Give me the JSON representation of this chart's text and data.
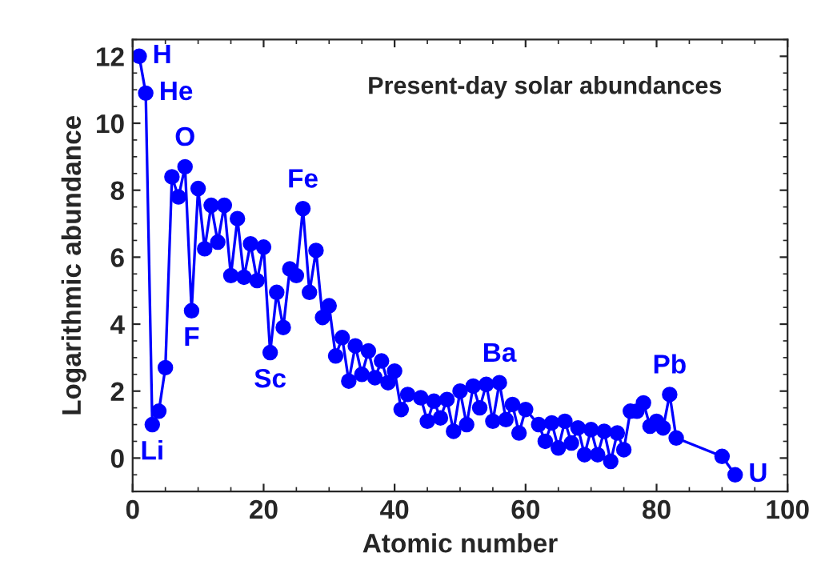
{
  "chart_data": {
    "type": "line",
    "title": "Present-day solar abundances",
    "xlabel": "Atomic number",
    "ylabel": "Logarithmic abundance",
    "x": [
      1,
      2,
      3,
      4,
      5,
      6,
      7,
      8,
      9,
      10,
      11,
      12,
      13,
      14,
      15,
      16,
      17,
      18,
      19,
      20,
      21,
      22,
      23,
      24,
      25,
      26,
      27,
      28,
      29,
      30,
      31,
      32,
      33,
      34,
      35,
      36,
      37,
      38,
      39,
      40,
      41,
      42,
      44,
      45,
      46,
      47,
      48,
      49,
      50,
      51,
      52,
      53,
      54,
      55,
      56,
      57,
      58,
      59,
      60,
      62,
      63,
      64,
      65,
      66,
      67,
      68,
      69,
      70,
      71,
      72,
      73,
      74,
      75,
      76,
      77,
      78,
      79,
      80,
      81,
      82,
      83,
      90,
      92
    ],
    "series": [
      {
        "color": "#0000ff",
        "values": [
          12.0,
          10.9,
          1.0,
          1.4,
          2.7,
          8.4,
          7.8,
          8.7,
          4.4,
          8.05,
          6.25,
          7.55,
          6.45,
          7.55,
          5.45,
          7.15,
          5.4,
          6.4,
          5.3,
          6.3,
          3.15,
          4.95,
          3.9,
          5.65,
          5.45,
          7.45,
          4.95,
          6.2,
          4.2,
          4.55,
          3.05,
          3.6,
          2.3,
          3.35,
          2.5,
          3.2,
          2.4,
          2.9,
          2.25,
          2.6,
          1.45,
          1.9,
          1.8,
          1.1,
          1.7,
          1.2,
          1.75,
          0.8,
          2.0,
          1.0,
          2.15,
          1.5,
          2.2,
          1.1,
          2.25,
          1.15,
          1.6,
          0.75,
          1.45,
          1.0,
          0.5,
          1.05,
          0.3,
          1.1,
          0.45,
          0.9,
          0.1,
          0.85,
          0.1,
          0.8,
          -0.1,
          0.75,
          0.25,
          1.4,
          1.4,
          1.65,
          0.95,
          1.1,
          0.9,
          1.9,
          0.6,
          0.05,
          -0.5
        ]
      }
    ],
    "marker": "circle",
    "line_style": "solid",
    "grid": false,
    "legend": false,
    "xlim": [
      0,
      100
    ],
    "ylim": [
      -1,
      12.5
    ],
    "xticks": [
      0,
      20,
      40,
      60,
      80,
      100
    ],
    "yticks": [
      0,
      2,
      4,
      6,
      8,
      10,
      12
    ],
    "annotations": [
      {
        "text": "H",
        "x": 1,
        "y": 12.0
      },
      {
        "text": "He",
        "x": 2,
        "y": 10.9
      },
      {
        "text": "Li",
        "x": 3,
        "y": 1.0
      },
      {
        "text": "O",
        "x": 8,
        "y": 8.7
      },
      {
        "text": "F",
        "x": 9,
        "y": 4.4
      },
      {
        "text": "Sc",
        "x": 21,
        "y": 3.15
      },
      {
        "text": "Fe",
        "x": 26,
        "y": 7.45
      },
      {
        "text": "Ba",
        "x": 56,
        "y": 2.25
      },
      {
        "text": "Pb",
        "x": 82,
        "y": 1.9
      },
      {
        "text": "U",
        "x": 92,
        "y": -0.5
      }
    ]
  }
}
